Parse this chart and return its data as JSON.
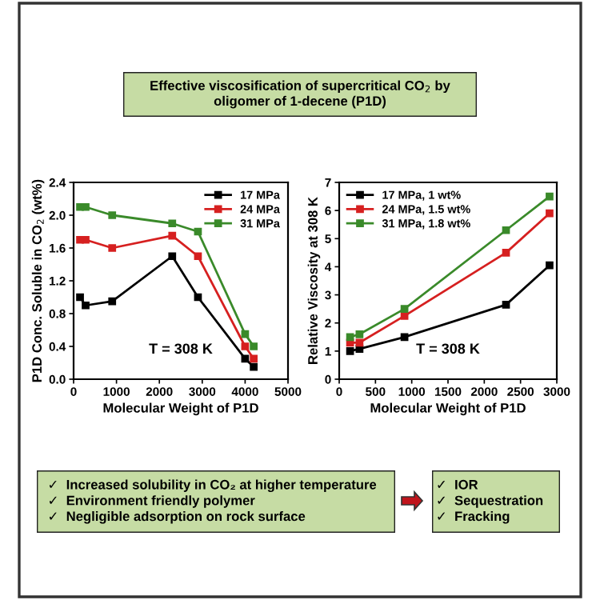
{
  "chart_data": [
    {
      "type": "other",
      "title": "Effective viscosification of supercritical CO$_{2}$ by\noligomer of 1-decene (P1D)",
      "color": "#c6dca4"
    },
    {
      "type": "line",
      "xlabel": "Molecular Weight of P1D",
      "ylabel": "P1D Conc. Soluble in CO$_{2}$ (wt%)",
      "xlim": [
        0,
        5000
      ],
      "ylim": [
        0,
        2.4
      ],
      "xticks": [
        0,
        1000,
        2000,
        3000,
        4000,
        5000
      ],
      "yticks": [
        {
          "value": 0,
          "label": "0.0"
        },
        0.4,
        0.8,
        1.2,
        1.6,
        {
          "value": 2,
          "label": "2.0"
        },
        2.4
      ],
      "x": [
        150,
        280,
        900,
        2300,
        2900,
        4000,
        4200
      ],
      "marker": "square",
      "legend": "top right",
      "annotations": [
        "T = 308 K"
      ],
      "series": [
        {
          "name": "17 MPa",
          "color": "#000000",
          "values": [
            1.0,
            0.9,
            0.95,
            1.5,
            1.0,
            0.25,
            0.15
          ]
        },
        {
          "name": "24 MPa",
          "color": "#d62020",
          "values": [
            1.7,
            1.7,
            1.6,
            1.75,
            1.5,
            0.4,
            0.25
          ]
        },
        {
          "name": "31 MPa",
          "color": "#3a8a2a",
          "values": [
            2.1,
            2.1,
            2.0,
            1.9,
            1.8,
            0.55,
            0.4
          ]
        }
      ]
    },
    {
      "type": "line",
      "xlabel": "Molecular Weight of P1D",
      "ylabel": "Relative Viscosity at 308 K",
      "xlim": [
        0,
        3000
      ],
      "ylim": [
        0,
        7
      ],
      "xticks": [
        0,
        500,
        1000,
        1500,
        2000,
        2500,
        3000
      ],
      "yticks": [
        0,
        1,
        2,
        3,
        4,
        5,
        6,
        7
      ],
      "x": [
        150,
        280,
        900,
        2300,
        2900
      ],
      "marker": "square",
      "legend": "top left",
      "annotations": [
        "T = 308 K"
      ],
      "series": [
        {
          "name": "17 MPa, 1 wt%",
          "color": "#000000",
          "values": [
            1.0,
            1.08,
            1.5,
            2.65,
            4.05
          ]
        },
        {
          "name": "24 MPa, 1.5 wt%",
          "color": "#d62020",
          "values": [
            1.3,
            1.3,
            2.25,
            4.5,
            5.9
          ]
        },
        {
          "name": "31 MPa, 1.8 wt%",
          "color": "#3a8a2a",
          "values": [
            1.5,
            1.6,
            2.5,
            5.3,
            6.5
          ]
        }
      ]
    },
    {
      "type": "other",
      "color": "#c6dca4",
      "annotations": [
        "✓  Increased solubility in CO₂ at higher temperature\n✓  Environment friendly polymer\n✓  Negligible adsorption on rock surface",
        "✓  IOR\n✓  Sequestration\n✓  Fracking"
      ]
    }
  ]
}
